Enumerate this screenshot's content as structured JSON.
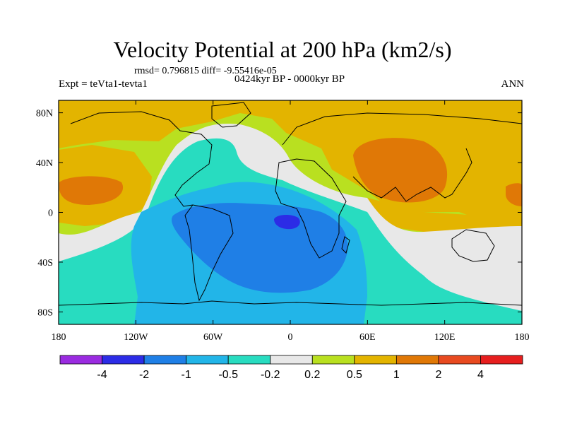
{
  "title": "Velocity Potential at 200 hPa (km2/s)",
  "stats": "rmsd= 0.796815 diff= -9.55416e-05",
  "subtitle": "0424kyr BP - 0000kyr BP",
  "expt": "Expt = teVta1-tevta1",
  "season": "ANN",
  "chart_data": {
    "type": "heatmap",
    "field": "200 hPa velocity potential difference (km2/s)",
    "projection": "cylindrical-equidistant",
    "lon_range": [
      -180,
      180
    ],
    "lat_range": [
      -90,
      90
    ],
    "x_ticks": [
      "180",
      "120W",
      "60W",
      "0",
      "60E",
      "120E",
      "180"
    ],
    "y_ticks": [
      "80N",
      "40N",
      "0",
      "40S",
      "80S"
    ],
    "levels": [
      "-4",
      "-2",
      "-1",
      "-0.5",
      "-0.2",
      "0.2",
      "0.5",
      "1",
      "2",
      "4"
    ],
    "colors": [
      "#9a2be0",
      "#2c2ce6",
      "#1f7fe6",
      "#22b5e8",
      "#28dcc0",
      "#e8e8e8",
      "#b9e020",
      "#e3b400",
      "#e07806",
      "#e84a20",
      "#e61e1e"
    ],
    "regions": [
      {
        "name": "northern high latitudes",
        "class": "0.5 to 1"
      },
      {
        "name": "Eurasia / Asian monsoon",
        "class": "1 to 2"
      },
      {
        "name": "central North Pacific",
        "class": "1 to 2"
      },
      {
        "name": "tropical Atlantic / South America",
        "class": "-1 to -0.5"
      },
      {
        "name": "equatorial Atlantic off Africa",
        "class": "-2 to -1"
      },
      {
        "name": "west of Gulf of Guinea",
        "class": "-4 to -2"
      },
      {
        "name": "Southern Ocean / Antarctica",
        "class": "-0.5 to -0.2"
      }
    ]
  }
}
